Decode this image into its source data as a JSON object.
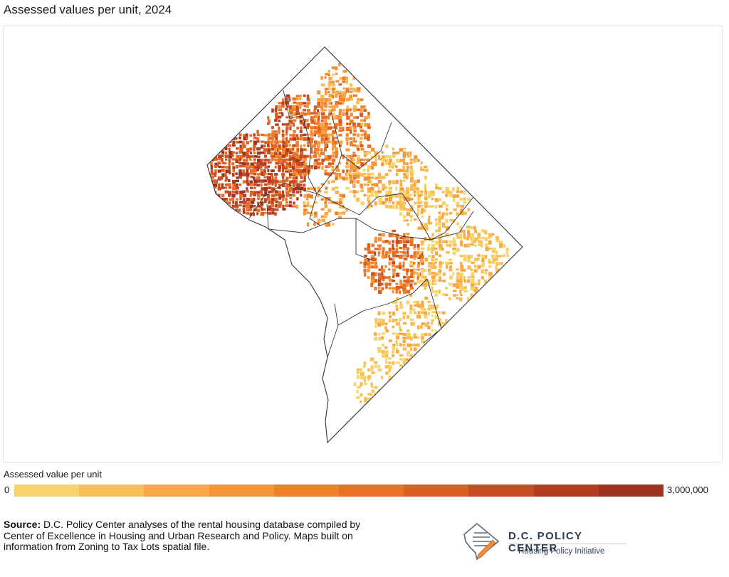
{
  "title": "Assessed values per unit, 2024",
  "legend": {
    "title": "Assessed value per unit",
    "min_label": "0",
    "max_label": "3,000,000",
    "colors": [
      "#f5d56b",
      "#f8bf55",
      "#f8a845",
      "#f69439",
      "#f2802b",
      "#e86f24",
      "#dc5f22",
      "#c94b22",
      "#b33d23",
      "#9f3322"
    ]
  },
  "map": {
    "outline_color": "#333333",
    "background": "#ffffff"
  },
  "source": {
    "label": "Source:",
    "text": " D.C. Policy Center analyses of the rental housing database compiled by Center of Excellence in Housing and Urban Research and Policy. Maps built on information from Zoning to Tax Lots spatial file."
  },
  "logo": {
    "name": "D.C. POLICY CENTER",
    "tagline": "Housing Policy Initiative",
    "icon": "dc-shape-document-icon"
  }
}
